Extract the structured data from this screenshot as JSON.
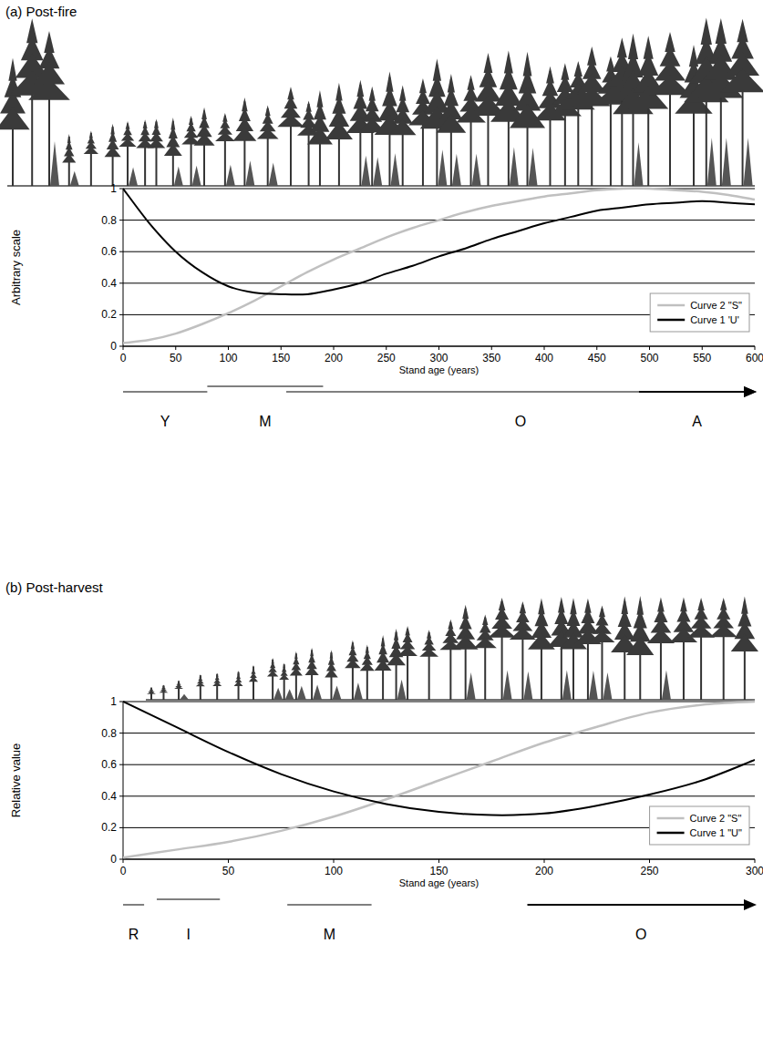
{
  "chart_data": [
    {
      "type": "line",
      "title": "(a) Post-fire",
      "x_label": "Stand age (years)",
      "y_label": "Arbitrary scale",
      "x": [
        0,
        25,
        50,
        75,
        100,
        125,
        150,
        175,
        200,
        225,
        250,
        275,
        300,
        325,
        350,
        375,
        400,
        425,
        450,
        475,
        500,
        525,
        550,
        575,
        600
      ],
      "series": [
        {
          "name": "Curve 2 \"S\"",
          "color": "#c0c0c0",
          "values": [
            0.02,
            0.04,
            0.08,
            0.14,
            0.21,
            0.29,
            0.38,
            0.47,
            0.55,
            0.62,
            0.69,
            0.75,
            0.8,
            0.85,
            0.89,
            0.92,
            0.95,
            0.97,
            0.99,
            1.0,
            1.0,
            0.99,
            0.98,
            0.96,
            0.93
          ]
        },
        {
          "name": "Curve 1 'U'",
          "color": "#000000",
          "values": [
            1.0,
            0.78,
            0.6,
            0.47,
            0.38,
            0.34,
            0.33,
            0.33,
            0.36,
            0.4,
            0.46,
            0.51,
            0.57,
            0.62,
            0.68,
            0.73,
            0.78,
            0.82,
            0.86,
            0.88,
            0.9,
            0.91,
            0.92,
            0.91,
            0.9
          ]
        }
      ],
      "xlim": [
        0,
        600
      ],
      "ylim": [
        0,
        1
      ],
      "xticks": [
        0,
        50,
        100,
        150,
        200,
        250,
        300,
        350,
        400,
        450,
        500,
        550,
        600
      ],
      "yticks": [
        0,
        0.2,
        0.4,
        0.6,
        0.8,
        1
      ],
      "grid": true,
      "legend": "lower right",
      "stages": [
        {
          "label": "Y",
          "start": 0,
          "end": 80
        },
        {
          "label": "M",
          "start": 80,
          "end": 190
        },
        {
          "label": "O",
          "start": 155,
          "end": 600
        },
        {
          "label": "A",
          "start": 490,
          "end": 600
        }
      ]
    },
    {
      "type": "line",
      "title": "(b) Post-harvest",
      "x_label": "Stand age (years)",
      "y_label": "Relative value",
      "x": [
        0,
        25,
        50,
        75,
        100,
        125,
        150,
        175,
        200,
        225,
        250,
        275,
        300
      ],
      "series": [
        {
          "name": "Curve 2 \"S\"",
          "color": "#c0c0c0",
          "values": [
            0.01,
            0.06,
            0.11,
            0.18,
            0.27,
            0.38,
            0.5,
            0.62,
            0.74,
            0.84,
            0.93,
            0.98,
            1.0
          ]
        },
        {
          "name": "Curve 1 \"U\"",
          "color": "#000000",
          "values": [
            1.0,
            0.84,
            0.68,
            0.54,
            0.43,
            0.35,
            0.3,
            0.28,
            0.29,
            0.34,
            0.41,
            0.5,
            0.63
          ]
        }
      ],
      "xlim": [
        0,
        300
      ],
      "ylim": [
        0,
        1
      ],
      "xticks": [
        0,
        50,
        100,
        150,
        200,
        250,
        300
      ],
      "yticks": [
        0,
        0.2,
        0.4,
        0.6,
        0.8,
        1
      ],
      "grid": true,
      "legend": "lower right",
      "stages": [
        {
          "label": "R",
          "start": 0,
          "end": 10
        },
        {
          "label": "I",
          "start": 16,
          "end": 46
        },
        {
          "label": "M",
          "start": 78,
          "end": 118
        },
        {
          "label": "O",
          "start": 192,
          "end": 300
        }
      ]
    }
  ]
}
